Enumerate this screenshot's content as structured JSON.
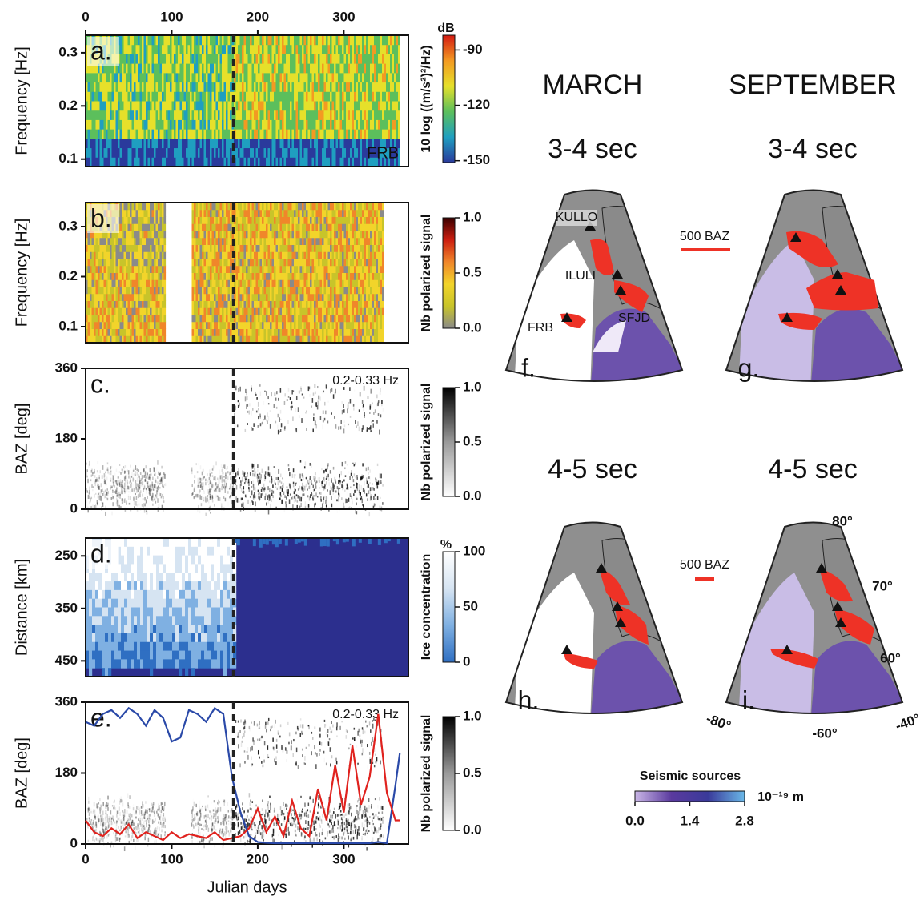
{
  "chart_data": [
    {
      "type": "heatmap",
      "panel_label": "a.",
      "ylabel": "Frequency [Hz]",
      "xlim": [
        0,
        375
      ],
      "xticks": [
        0,
        100,
        200,
        300
      ],
      "xaxis": "top",
      "ylim": [
        0.086,
        0.333
      ],
      "yticks": [
        0.1,
        0.2,
        0.3
      ],
      "vline": 172,
      "annotation": "FRB",
      "annotation_corner": "bottom-right",
      "colorbar": {
        "label": "10 log ((m/s²)²/Hz)",
        "unit": "dB",
        "lim": [
          -151,
          -82
        ],
        "ticks": [
          -90,
          -120,
          -150
        ],
        "colors": [
          "#2a3a9c",
          "#1f9fc0",
          "#5cbf5c",
          "#e6e02a",
          "#f39a22",
          "#d41a12"
        ]
      }
    },
    {
      "type": "heatmap",
      "panel_label": "b.",
      "ylabel": "Frequency [Hz]",
      "xlim": [
        0,
        375
      ],
      "ylim": [
        0.068,
        0.348
      ],
      "yticks": [
        0.1,
        0.2,
        0.3
      ],
      "vline": 172,
      "colorbar": {
        "label": "Nb polarized signal",
        "lim": [
          0,
          1
        ],
        "ticks": [
          {
            "value": 0,
            "label": "0.0"
          },
          0.5,
          {
            "value": 1,
            "label": "1.0"
          }
        ],
        "colors": [
          "#8a8a8a",
          "#c8c42a",
          "#f2d42a",
          "#f0862a",
          "#cc1e10",
          "#3a0000"
        ]
      }
    },
    {
      "type": "scatter-density",
      "panel_label": "c.",
      "ylabel": "BAZ [deg]",
      "xlim": [
        0,
        375
      ],
      "ylim": [
        0,
        360
      ],
      "yticks": [
        0,
        180,
        360
      ],
      "vline": 172,
      "annotation": "0.2-0.33 Hz",
      "annotation_corner": "top-right",
      "colorbar": {
        "label": "Nb polarized signal",
        "lim": [
          0,
          1
        ],
        "ticks": [
          {
            "value": 0,
            "label": "0.0"
          },
          0.5,
          {
            "value": 1,
            "label": "1.0"
          }
        ],
        "colors": [
          "#ffffff",
          "#9a9a9a",
          "#000000"
        ]
      }
    },
    {
      "type": "heatmap",
      "panel_label": "d.",
      "ylabel": "Distance [km]",
      "xlim": [
        0,
        375
      ],
      "ylim": [
        216,
        480
      ],
      "yinvert": true,
      "yticks": [
        250,
        350,
        450
      ],
      "vline": 172,
      "open_water_color": "#2c2f8e",
      "colorbar": {
        "label": "Ice concentration",
        "unit": "%",
        "lim": [
          0,
          100
        ],
        "ticks": [
          0,
          50,
          100
        ],
        "colors": [
          "#2f6fc2",
          "#7fb0e2",
          "#d6e4f2",
          "#ffffff"
        ]
      }
    },
    {
      "type": "line",
      "panel_label": "e.",
      "ylabel": "BAZ [deg]",
      "xlabel": "Julian days",
      "xlim": [
        0,
        375
      ],
      "xticks": [
        0,
        100,
        200,
        300
      ],
      "xaxis": "bottom",
      "ylim": [
        0,
        360
      ],
      "yticks": [
        0,
        180,
        360
      ],
      "vline": 172,
      "annotation": "0.2-0.33 Hz",
      "annotation_corner": "top-right",
      "x": [
        0,
        10,
        20,
        30,
        40,
        50,
        60,
        70,
        80,
        90,
        100,
        110,
        120,
        130,
        140,
        150,
        160,
        170,
        180,
        190,
        200,
        210,
        220,
        230,
        240,
        250,
        260,
        270,
        280,
        290,
        300,
        310,
        320,
        330,
        340,
        350,
        360,
        365
      ],
      "series": [
        {
          "color": "#2a49a8",
          "values": [
            310,
            300,
            330,
            340,
            320,
            345,
            330,
            300,
            340,
            320,
            260,
            270,
            340,
            330,
            310,
            345,
            330,
            170,
            80,
            20,
            5,
            3,
            2,
            2,
            2,
            2,
            2,
            2,
            2,
            2,
            2,
            2,
            2,
            2,
            5,
            2,
            150,
            230
          ]
        },
        {
          "color": "#e0221e",
          "values": [
            60,
            30,
            20,
            40,
            25,
            50,
            15,
            30,
            20,
            10,
            30,
            15,
            25,
            20,
            15,
            30,
            10,
            15,
            20,
            40,
            90,
            30,
            70,
            20,
            110,
            40,
            20,
            140,
            60,
            200,
            80,
            250,
            100,
            170,
            330,
            130,
            60,
            60
          ]
        }
      ],
      "colorbar": {
        "label": "Nb polarized signal",
        "lim": [
          0,
          1
        ],
        "ticks": [
          {
            "value": 0,
            "label": "0.0"
          },
          0.5,
          {
            "value": 1,
            "label": "1.0"
          }
        ],
        "colors": [
          "#ffffff",
          "#9a9a9a",
          "#000000"
        ]
      }
    }
  ],
  "maps": {
    "column_titles": [
      "MARCH",
      "SEPTEMBER"
    ],
    "row_titles": [
      "3-4 sec",
      "3-4 sec",
      "4-5 sec",
      "4-5 sec"
    ],
    "panel_labels": [
      "f.",
      "g.",
      "h.",
      "i."
    ],
    "stations": [
      "KULLO",
      "ILULI",
      "SFJD",
      "FRB"
    ],
    "scale_labels": [
      "500 BAZ",
      "500 BAZ"
    ],
    "graticule_labels": [
      "80°",
      "70°",
      "60°",
      "-80°",
      "-60°",
      "-40°"
    ],
    "colorbar": {
      "title": "Seismic sources",
      "unit": "10⁻¹⁹ m",
      "lim": [
        0,
        2.8
      ],
      "ticks": [
        {
          "value": 0,
          "label": "0.0"
        },
        1.4,
        2.8
      ],
      "colors": [
        "#c9b6e6",
        "#5a3a9e",
        "#3a3a9a",
        "#6ab8e8"
      ]
    }
  }
}
